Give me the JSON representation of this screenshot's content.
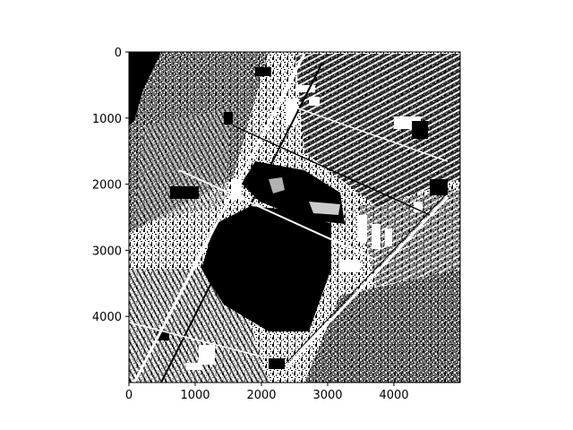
{
  "figure": {
    "background_color": "#ffffff",
    "axes_color": "#000000",
    "image_description_colors": {
      "dark": "#000000",
      "light": "#ffffff"
    }
  },
  "image": {
    "kind": "binary-segmentation-mask",
    "extent": {
      "x": [
        0,
        5000
      ],
      "y": [
        5000,
        0
      ]
    }
  },
  "axes": {
    "x_ticks": [
      {
        "value": 0,
        "label": "0"
      },
      {
        "value": 1000,
        "label": "1000"
      },
      {
        "value": 2000,
        "label": "2000"
      },
      {
        "value": 3000,
        "label": "3000"
      },
      {
        "value": 4000,
        "label": "4000"
      }
    ],
    "y_ticks": [
      {
        "value": 0,
        "label": "0"
      },
      {
        "value": 1000,
        "label": "1000"
      },
      {
        "value": 2000,
        "label": "2000"
      },
      {
        "value": 3000,
        "label": "3000"
      },
      {
        "value": 4000,
        "label": "4000"
      }
    ]
  }
}
